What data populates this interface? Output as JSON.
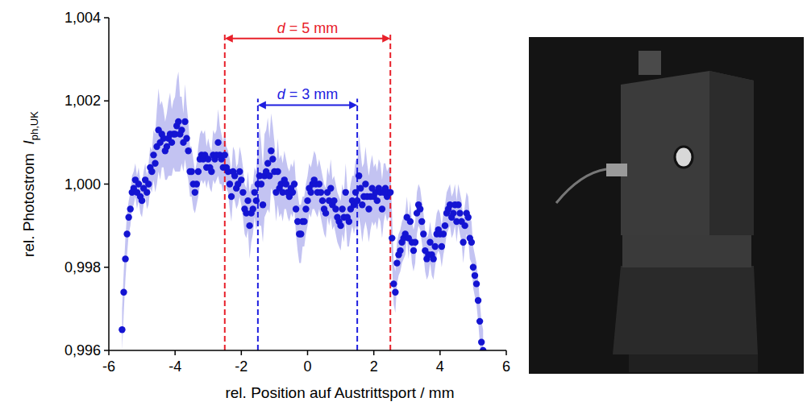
{
  "chart_data": {
    "type": "scatter",
    "x_label": "rel. Position auf Austrittsport / mm",
    "y_label": "rel. Photostrom",
    "y_label_symbol": "I",
    "y_label_subscript": "ph,UK",
    "xlim": [
      -6,
      6
    ],
    "xticks": [
      -6,
      -4,
      -2,
      0,
      2,
      4,
      6
    ],
    "ylim": [
      0.996,
      1.004
    ],
    "yticks": [
      {
        "value": 0.996,
        "label": "0,996"
      },
      {
        "value": 0.998,
        "label": "0,998"
      },
      {
        "value": 1.0,
        "label": "1,000"
      },
      {
        "value": 1.002,
        "label": "1,002"
      },
      {
        "value": 1.004,
        "label": "1,004"
      }
    ],
    "grid": false,
    "x": [
      -5.6,
      -5.55,
      -5.5,
      -5.45,
      -5.4,
      -5.35,
      -5.3,
      -5.25,
      -5.2,
      -5.15,
      -5.1,
      -5.05,
      -5.0,
      -4.95,
      -4.9,
      -4.85,
      -4.8,
      -4.75,
      -4.7,
      -4.65,
      -4.6,
      -4.55,
      -4.5,
      -4.45,
      -4.4,
      -4.35,
      -4.3,
      -4.25,
      -4.2,
      -4.15,
      -4.1,
      -4.05,
      -4.0,
      -3.95,
      -3.9,
      -3.85,
      -3.8,
      -3.75,
      -3.7,
      -3.65,
      -3.6,
      -3.55,
      -3.5,
      -3.45,
      -3.4,
      -3.35,
      -3.3,
      -3.25,
      -3.2,
      -3.15,
      -3.1,
      -3.05,
      -3.0,
      -2.95,
      -2.9,
      -2.85,
      -2.8,
      -2.75,
      -2.7,
      -2.65,
      -2.6,
      -2.55,
      -2.5,
      -2.45,
      -2.4,
      -2.35,
      -2.3,
      -2.25,
      -2.2,
      -2.15,
      -2.1,
      -2.05,
      -2.0,
      -1.95,
      -1.9,
      -1.85,
      -1.8,
      -1.75,
      -1.7,
      -1.65,
      -1.6,
      -1.55,
      -1.5,
      -1.45,
      -1.4,
      -1.35,
      -1.3,
      -1.25,
      -1.2,
      -1.15,
      -1.1,
      -1.05,
      -1.0,
      -0.95,
      -0.9,
      -0.85,
      -0.8,
      -0.75,
      -0.7,
      -0.65,
      -0.6,
      -0.55,
      -0.5,
      -0.45,
      -0.4,
      -0.35,
      -0.3,
      -0.25,
      -0.2,
      -0.15,
      -0.1,
      -0.05,
      0.0,
      0.05,
      0.1,
      0.15,
      0.2,
      0.25,
      0.3,
      0.35,
      0.4,
      0.45,
      0.5,
      0.55,
      0.6,
      0.65,
      0.7,
      0.75,
      0.8,
      0.85,
      0.9,
      0.95,
      1.0,
      1.05,
      1.1,
      1.15,
      1.2,
      1.25,
      1.3,
      1.35,
      1.4,
      1.45,
      1.5,
      1.55,
      1.6,
      1.65,
      1.7,
      1.75,
      1.8,
      1.85,
      1.9,
      1.95,
      2.0,
      2.05,
      2.1,
      2.15,
      2.2,
      2.25,
      2.3,
      2.35,
      2.4,
      2.45,
      2.5,
      2.55,
      2.6,
      2.65,
      2.7,
      2.75,
      2.8,
      2.85,
      2.9,
      2.95,
      3.0,
      3.05,
      3.1,
      3.15,
      3.2,
      3.25,
      3.3,
      3.35,
      3.4,
      3.45,
      3.5,
      3.55,
      3.6,
      3.65,
      3.7,
      3.75,
      3.8,
      3.85,
      3.9,
      3.95,
      4.0,
      4.05,
      4.1,
      4.15,
      4.2,
      4.25,
      4.3,
      4.35,
      4.4,
      4.45,
      4.5,
      4.55,
      4.6,
      4.65,
      4.7,
      4.75,
      4.8,
      4.85,
      4.9,
      4.95,
      5.0,
      5.05,
      5.1,
      5.15,
      5.2,
      5.25,
      5.3
    ],
    "series": [
      {
        "name": "Iph,UK",
        "color": "#1414d2",
        "marker": "circle",
        "values": [
          0.9965,
          0.9974,
          0.9982,
          0.9988,
          0.9992,
          0.9994,
          0.9998,
          0.9999,
          1.0001,
          0.9998,
          1.0,
          0.9997,
          0.9996,
          0.9999,
          1.0001,
          0.9998,
          1.0,
          1.0004,
          1.0003,
          1.0007,
          1.0005,
          1.0009,
          1.0013,
          1.001,
          1.0012,
          1.0011,
          1.0008,
          1.0009,
          1.0011,
          1.0012,
          1.001,
          1.0012,
          1.0012,
          1.0014,
          1.0015,
          1.0012,
          1.0013,
          1.001,
          1.0015,
          1.0011,
          1.0008,
          1.0003,
          1.0003,
          1.0,
          0.9998,
          1.0,
          1.0003,
          1.0006,
          1.0007,
          1.0006,
          1.0007,
          1.0004,
          1.0006,
          1.0004,
          1.0003,
          1.0007,
          1.0006,
          1.0007,
          1.001,
          1.0007,
          1.0006,
          1.0004,
          1.0007,
          1.0004,
          1.0003,
          1.0,
          0.9997,
          1.0003,
          1.0002,
          0.9999,
          1.0,
          1.0003,
          1.0001,
          0.9998,
          0.9994,
          0.9993,
          0.9996,
          0.999,
          0.9993,
          0.9994,
          0.9998,
          0.9996,
          1.0,
          1.0002,
          1.0,
          0.9995,
          1.0002,
          1.0003,
          1.0005,
          1.0002,
          1.0008,
          1.0006,
          1.0003,
          0.9998,
          1.0003,
          0.9999,
          1.0,
          0.9998,
          1.0001,
          1.0,
          0.9998,
          0.9997,
          0.9999,
          0.9998,
          1.0,
          0.9994,
          0.9991,
          0.9988,
          0.9988,
          0.9991,
          0.9991,
          0.9994,
          0.9996,
          0.9999,
          0.9998,
          1.0,
          1.0001,
          1.0,
          0.9998,
          1.0,
          0.9998,
          0.9996,
          0.9994,
          0.9993,
          0.9998,
          0.9996,
          0.9999,
          0.9995,
          0.9996,
          0.9994,
          0.9992,
          0.9991,
          0.999,
          0.9994,
          0.9992,
          0.9998,
          0.9992,
          0.9991,
          0.9994,
          0.9996,
          0.9995,
          0.9998,
          0.9996,
          1.0002,
          0.9999,
          0.9995,
          0.9997,
          1.0,
          0.9997,
          0.9994,
          0.9997,
          0.9999,
          0.9997,
          0.9998,
          0.9996,
          0.9999,
          0.9998,
          0.9994,
          0.9998,
          0.9999,
          0.9997,
          0.9998,
          0.9998,
          0.9987,
          0.9976,
          0.9974,
          0.9981,
          0.9983,
          0.9984,
          0.9986,
          0.9987,
          0.9988,
          0.9992,
          0.9987,
          0.9991,
          0.9986,
          0.9984,
          0.9986,
          0.9993,
          0.9995,
          0.9994,
          0.9991,
          0.9988,
          0.9984,
          0.9982,
          0.9983,
          0.9986,
          0.9983,
          0.9982,
          0.9985,
          0.9988,
          0.9989,
          0.9988,
          0.9985,
          0.9988,
          0.999,
          0.9993,
          0.9994,
          0.9995,
          0.9992,
          0.9993,
          0.9995,
          0.9991,
          0.9995,
          0.9993,
          0.9991,
          0.9986,
          0.999,
          0.9993,
          0.9992,
          0.9987,
          0.9986,
          0.998,
          0.9978,
          0.9976,
          0.9972,
          0.9967,
          0.9962,
          0.996
        ],
        "errors": [
          0.0005,
          0.0005,
          0.0005,
          0.0005,
          0.0004,
          0.0004,
          0.0004,
          0.0004,
          0.0004,
          0.0004,
          0.0004,
          0.0004,
          0.0004,
          0.0004,
          0.0004,
          0.0004,
          0.0005,
          0.0005,
          0.0005,
          0.0006,
          0.0007,
          0.0009,
          0.001,
          0.0009,
          0.0008,
          0.0007,
          0.0007,
          0.0008,
          0.0009,
          0.001,
          0.0008,
          0.0008,
          0.0009,
          0.0011,
          0.0012,
          0.0009,
          0.0008,
          0.0007,
          0.0009,
          0.0008,
          0.0007,
          0.0006,
          0.0006,
          0.0006,
          0.0005,
          0.0005,
          0.0006,
          0.0006,
          0.0006,
          0.0006,
          0.0006,
          0.0005,
          0.0005,
          0.0005,
          0.0005,
          0.0006,
          0.0006,
          0.0006,
          0.0008,
          0.0007,
          0.0006,
          0.0006,
          0.0006,
          0.0005,
          0.0005,
          0.0006,
          0.0006,
          0.0006,
          0.0006,
          0.0005,
          0.0005,
          0.0006,
          0.0006,
          0.0006,
          0.0006,
          0.0006,
          0.0007,
          0.0008,
          0.0007,
          0.0006,
          0.0006,
          0.0007,
          0.0009,
          0.0012,
          0.001,
          0.0009,
          0.001,
          0.001,
          0.0011,
          0.0009,
          0.0009,
          0.0008,
          0.0007,
          0.0007,
          0.0008,
          0.0007,
          0.0007,
          0.0007,
          0.0007,
          0.0006,
          0.0006,
          0.0006,
          0.0006,
          0.0006,
          0.0006,
          0.0006,
          0.0007,
          0.0007,
          0.0007,
          0.0006,
          0.0006,
          0.0006,
          0.0006,
          0.0006,
          0.0006,
          0.0006,
          0.0007,
          0.0007,
          0.0006,
          0.0006,
          0.0006,
          0.0006,
          0.0006,
          0.0006,
          0.0006,
          0.0006,
          0.0007,
          0.0006,
          0.0006,
          0.0006,
          0.0006,
          0.0006,
          0.0006,
          0.0006,
          0.0006,
          0.0007,
          0.0007,
          0.0006,
          0.0006,
          0.0006,
          0.0007,
          0.0008,
          0.0009,
          0.001,
          0.0009,
          0.0009,
          0.0008,
          0.0009,
          0.0008,
          0.0008,
          0.0008,
          0.0008,
          0.0007,
          0.0007,
          0.0007,
          0.0007,
          0.0007,
          0.0007,
          0.0007,
          0.0006,
          0.0006,
          0.0006,
          0.0006,
          0.0006,
          0.0005,
          0.0005,
          0.0005,
          0.0005,
          0.0005,
          0.0005,
          0.0005,
          0.0005,
          0.0005,
          0.0005,
          0.0005,
          0.0005,
          0.0005,
          0.0005,
          0.0005,
          0.0005,
          0.0005,
          0.0005,
          0.0005,
          0.0005,
          0.0005,
          0.0005,
          0.0005,
          0.0005,
          0.0005,
          0.0005,
          0.0005,
          0.0005,
          0.0005,
          0.0005,
          0.0005,
          0.0005,
          0.0005,
          0.0005,
          0.0005,
          0.0005,
          0.0005,
          0.0005,
          0.0005,
          0.0005,
          0.0005,
          0.0005,
          0.0005,
          0.0005,
          0.0005,
          0.0005,
          0.0005,
          0.0005,
          0.0005,
          0.0005,
          0.0005,
          0.0005,
          0.0005,
          0.0005,
          0.0005
        ]
      }
    ],
    "annotations": [
      {
        "text": "d = 5 mm",
        "x": [
          -2.5,
          2.5
        ],
        "y": 1.0035,
        "color": "#e8202a"
      },
      {
        "text": "d = 3 mm",
        "x": [
          -1.5,
          1.5
        ],
        "y": 1.0019,
        "color": "#1e1ee0"
      }
    ]
  }
}
